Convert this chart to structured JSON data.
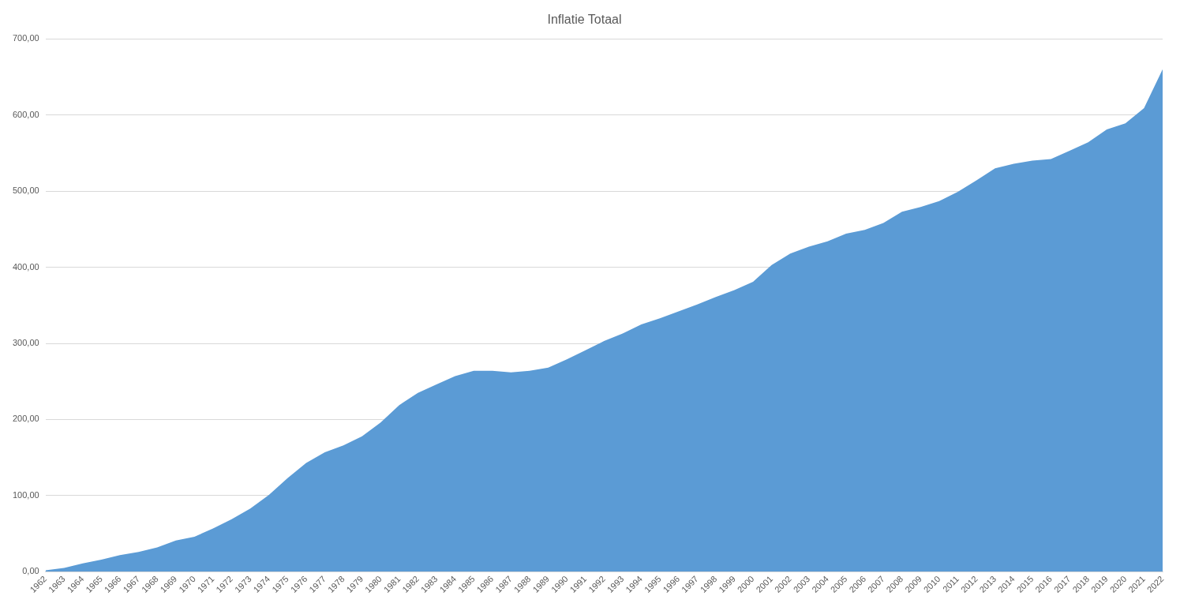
{
  "chart_data": {
    "type": "area",
    "title": "Inflatie Totaal",
    "categories": [
      "1962",
      "1963",
      "1964",
      "1965",
      "1966",
      "1967",
      "1968",
      "1969",
      "1970",
      "1971",
      "1972",
      "1973",
      "1974",
      "1975",
      "1976",
      "1977",
      "1978",
      "1979",
      "1980",
      "1981",
      "1982",
      "1983",
      "1984",
      "1985",
      "1986",
      "1987",
      "1988",
      "1989",
      "1990",
      "1991",
      "1992",
      "1993",
      "1994",
      "1995",
      "1996",
      "1997",
      "1998",
      "1999",
      "2000",
      "2001",
      "2002",
      "2003",
      "2004",
      "2005",
      "2006",
      "2007",
      "2008",
      "2009",
      "2010",
      "2011",
      "2012",
      "2013",
      "2014",
      "2015",
      "2016",
      "2017",
      "2018",
      "2019",
      "2020",
      "2021",
      "2022"
    ],
    "series": [
      {
        "color": "#5b9bd5",
        "values": [
          2,
          5,
          11,
          16,
          22,
          26,
          32,
          41,
          46,
          57,
          69,
          83,
          101,
          123,
          143,
          157,
          166,
          178,
          196,
          219,
          235,
          246,
          257,
          264,
          264,
          262,
          264,
          268,
          279,
          291,
          303,
          313,
          325,
          333,
          342,
          351,
          361,
          370,
          381,
          403,
          418,
          427,
          434,
          444,
          449,
          458,
          473,
          479,
          487,
          499,
          514,
          530,
          536,
          540,
          542,
          553,
          564,
          581,
          589,
          609,
          660
        ]
      }
    ],
    "ylim": [
      0,
      700
    ],
    "yticks": [
      {
        "value": 0,
        "label": "0,00"
      },
      {
        "value": 100,
        "label": "100,00"
      },
      {
        "value": 200,
        "label": "200,00"
      },
      {
        "value": 300,
        "label": "300,00"
      },
      {
        "value": 400,
        "label": "400,00"
      },
      {
        "value": 500,
        "label": "500,00"
      },
      {
        "value": 600,
        "label": "600,00"
      },
      {
        "value": 700,
        "label": "700,00"
      }
    ],
    "grid": "y",
    "legend": false
  }
}
